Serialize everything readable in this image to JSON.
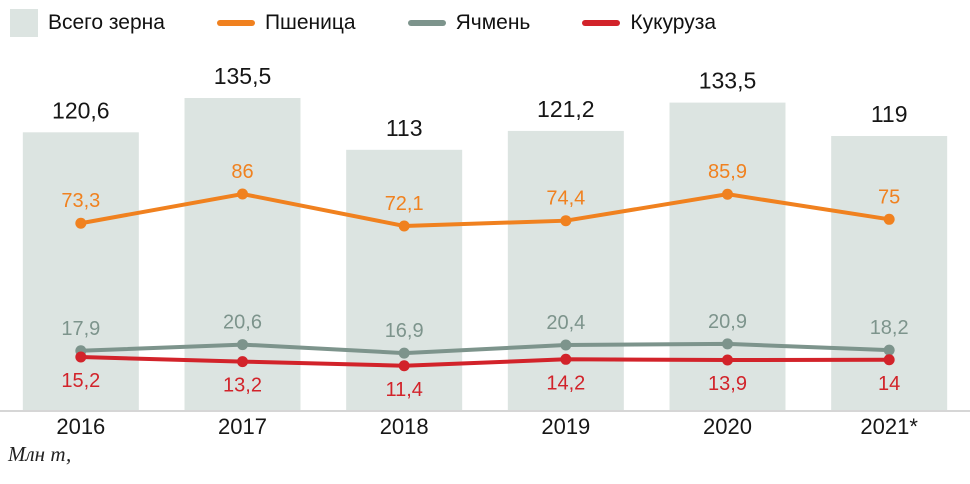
{
  "legend": [
    {
      "key": "total",
      "label": "Всего зерна",
      "color": "#dce4e1",
      "type": "bar"
    },
    {
      "key": "wheat",
      "label": "Пшеница",
      "color": "#f0811f",
      "type": "line"
    },
    {
      "key": "barley",
      "label": "Ячмень",
      "color": "#7d948c",
      "type": "line"
    },
    {
      "key": "corn",
      "label": "Кукуруза",
      "color": "#d2232a",
      "type": "line"
    }
  ],
  "unit_label": "Млн т,",
  "colors": {
    "bar_fill": "#dce4e1",
    "wheat": "#f0811f",
    "barley": "#7d948c",
    "corn": "#d2232a",
    "axis_line": "#c9c9c9",
    "text": "#161616"
  },
  "chart_data": {
    "type": "bar",
    "title": "",
    "xlabel": "",
    "ylabel": "Млн т",
    "grid": false,
    "legend_position": "top",
    "categories": [
      "2016",
      "2017",
      "2018",
      "2019",
      "2020",
      "2021*"
    ],
    "bar_series": {
      "name": "Всего зерна",
      "key": "total",
      "color": "#dce4e1",
      "values": [
        120.6,
        135.5,
        113,
        121.2,
        133.5,
        119
      ],
      "labels": [
        "120,6",
        "135,5",
        "113",
        "121,2",
        "133,5",
        "119"
      ]
    },
    "series": [
      {
        "name": "Пшеница",
        "key": "wheat",
        "color": "#f0811f",
        "values": [
          73.3,
          86,
          72.1,
          74.4,
          85.9,
          75
        ],
        "labels": [
          "73,3",
          "86",
          "72,1",
          "74,4",
          "85,9",
          "75"
        ],
        "label_position": "above"
      },
      {
        "name": "Ячмень",
        "key": "barley",
        "color": "#7d948c",
        "values": [
          17.9,
          20.6,
          16.9,
          20.4,
          20.9,
          18.2
        ],
        "labels": [
          "17,9",
          "20,6",
          "16,9",
          "20,4",
          "20,9",
          "18,2"
        ],
        "label_position": "above"
      },
      {
        "name": "Кукуруза",
        "key": "corn",
        "color": "#d2232a",
        "values": [
          15.2,
          13.2,
          11.4,
          14.2,
          13.9,
          14
        ],
        "labels": [
          "15,2",
          "13,2",
          "11,4",
          "14,2",
          "13,9",
          "14"
        ],
        "label_position": "below"
      }
    ],
    "ylim": [
      0,
      140
    ]
  }
}
